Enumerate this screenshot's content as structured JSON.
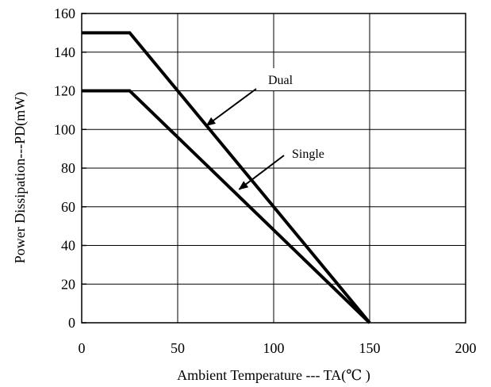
{
  "chart_data": {
    "type": "line",
    "title": "",
    "xlabel": "Ambient Temperature --- TA(℃ )",
    "ylabel": "Power Dissipation---PD(mW)",
    "xlim": [
      0,
      200
    ],
    "ylim": [
      0,
      160
    ],
    "xticks": [
      0,
      50,
      100,
      150,
      200
    ],
    "yticks": [
      0,
      20,
      40,
      60,
      80,
      100,
      120,
      140,
      160
    ],
    "grid": true,
    "legend": "none",
    "series": [
      {
        "name": "Dual",
        "x": [
          0,
          25,
          150
        ],
        "y": [
          150,
          150,
          0
        ]
      },
      {
        "name": "Single",
        "x": [
          0,
          25,
          150
        ],
        "y": [
          120,
          120,
          0
        ]
      }
    ],
    "annotations": [
      {
        "text": "Dual",
        "series": "Dual",
        "arrow_to": [
          65,
          102
        ]
      },
      {
        "text": "Single",
        "series": "Single",
        "arrow_to": [
          82,
          69
        ]
      }
    ]
  }
}
